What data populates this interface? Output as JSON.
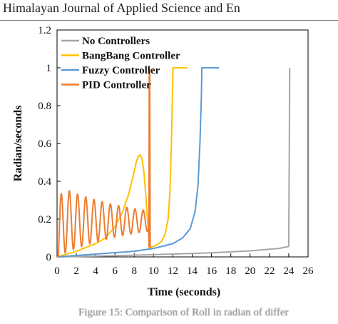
{
  "header": {
    "text": "Himalayan Journal of Applied Science and En"
  },
  "caption": {
    "text": "Figure 15: Comparison of Roll in radian of differ"
  },
  "chart_data": {
    "type": "line",
    "xlabel": "Time (seconds)",
    "ylabel": "Radian/seconds",
    "xlim": [
      0,
      26
    ],
    "ylim": [
      0,
      1.2
    ],
    "xticks": [
      0,
      2,
      4,
      6,
      8,
      10,
      12,
      14,
      16,
      18,
      20,
      22,
      24,
      26
    ],
    "yticks": [
      0,
      0.2,
      0.4,
      0.6,
      0.8,
      1,
      1.2
    ],
    "grid": false,
    "legend_position": "top-left",
    "series": [
      {
        "name": "No Controllers",
        "color": "#a6a6a6",
        "x": [
          0,
          4,
          8,
          12,
          16,
          20,
          23,
          24.0,
          24.05,
          24.1
        ],
        "y": [
          0,
          0.004,
          0.009,
          0.015,
          0.022,
          0.032,
          0.045,
          0.055,
          0.5,
          1.0
        ]
      },
      {
        "name": "BangBang Controller",
        "color": "#ffc000",
        "x": [
          0,
          2,
          4,
          5,
          6,
          6.8,
          7.4,
          7.9,
          8.2,
          8.4,
          8.6,
          8.8,
          9.0,
          9.2,
          9.4,
          9.55,
          9.7,
          10.2,
          10.8,
          11.2,
          11.5,
          11.7,
          11.85,
          11.95,
          12.0,
          13.5
        ],
        "y": [
          0,
          0.03,
          0.07,
          0.1,
          0.16,
          0.24,
          0.33,
          0.43,
          0.5,
          0.53,
          0.54,
          0.52,
          0.45,
          0.32,
          0.17,
          0.08,
          0.05,
          0.06,
          0.08,
          0.12,
          0.2,
          0.35,
          0.6,
          0.85,
          1.0,
          1.0
        ]
      },
      {
        "name": "Fuzzy Controller",
        "color": "#5b9bd5",
        "x": [
          0,
          4,
          8,
          10,
          12,
          13,
          13.8,
          14.3,
          14.6,
          14.8,
          14.95,
          15.0,
          16.8
        ],
        "y": [
          0,
          0.015,
          0.03,
          0.045,
          0.07,
          0.1,
          0.15,
          0.24,
          0.38,
          0.6,
          0.85,
          1.0,
          1.0
        ]
      },
      {
        "name": "PID Controller",
        "color": "#ed7d31",
        "x": [
          0,
          9.5,
          9.52,
          9.55,
          9.6,
          9.65,
          9.7
        ],
        "y": [
          0.05,
          0.23,
          0.05,
          0.99,
          0.99,
          0.06,
          0.05
        ]
      }
    ]
  }
}
